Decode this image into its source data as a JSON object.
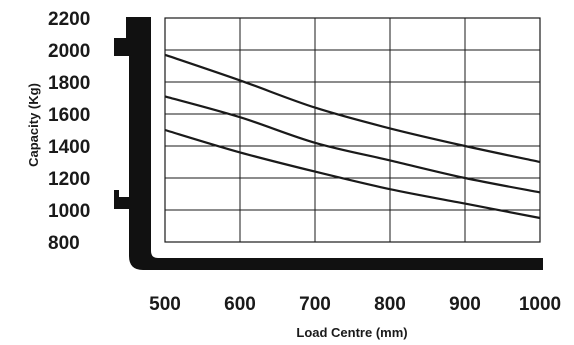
{
  "chart_data": {
    "type": "line",
    "title": "",
    "xlabel": "Load Centre (mm)",
    "ylabel": "Capacity (Kg)",
    "x_ticks": [
      "500",
      "600",
      "700",
      "800",
      "900",
      "1000"
    ],
    "y_ticks": [
      "2200",
      "2000",
      "1800",
      "1600",
      "1400",
      "1200",
      "1000",
      "800"
    ],
    "xlim": [
      500,
      1000
    ],
    "ylim": [
      800,
      2200
    ],
    "plot_area_ylim": [
      800,
      2200
    ],
    "grid": true,
    "legend": "none",
    "series": [
      {
        "x": [
          500,
          600,
          700,
          800,
          900,
          1000
        ],
        "y": [
          1710,
          1580,
          1420,
          1310,
          1200,
          1110
        ]
      },
      {
        "x": [
          500,
          600,
          700,
          800,
          900,
          1000
        ],
        "y": [
          1500,
          1360,
          1240,
          1130,
          1040,
          950
        ]
      },
      {
        "x": [
          500,
          600,
          700,
          800,
          900,
          1000
        ],
        "y": [
          1970,
          1810,
          1640,
          1510,
          1400,
          1300
        ]
      }
    ],
    "line_color": "#1a1a1a",
    "grid_color": "#1a1a1a",
    "fork_color": "#111111"
  }
}
